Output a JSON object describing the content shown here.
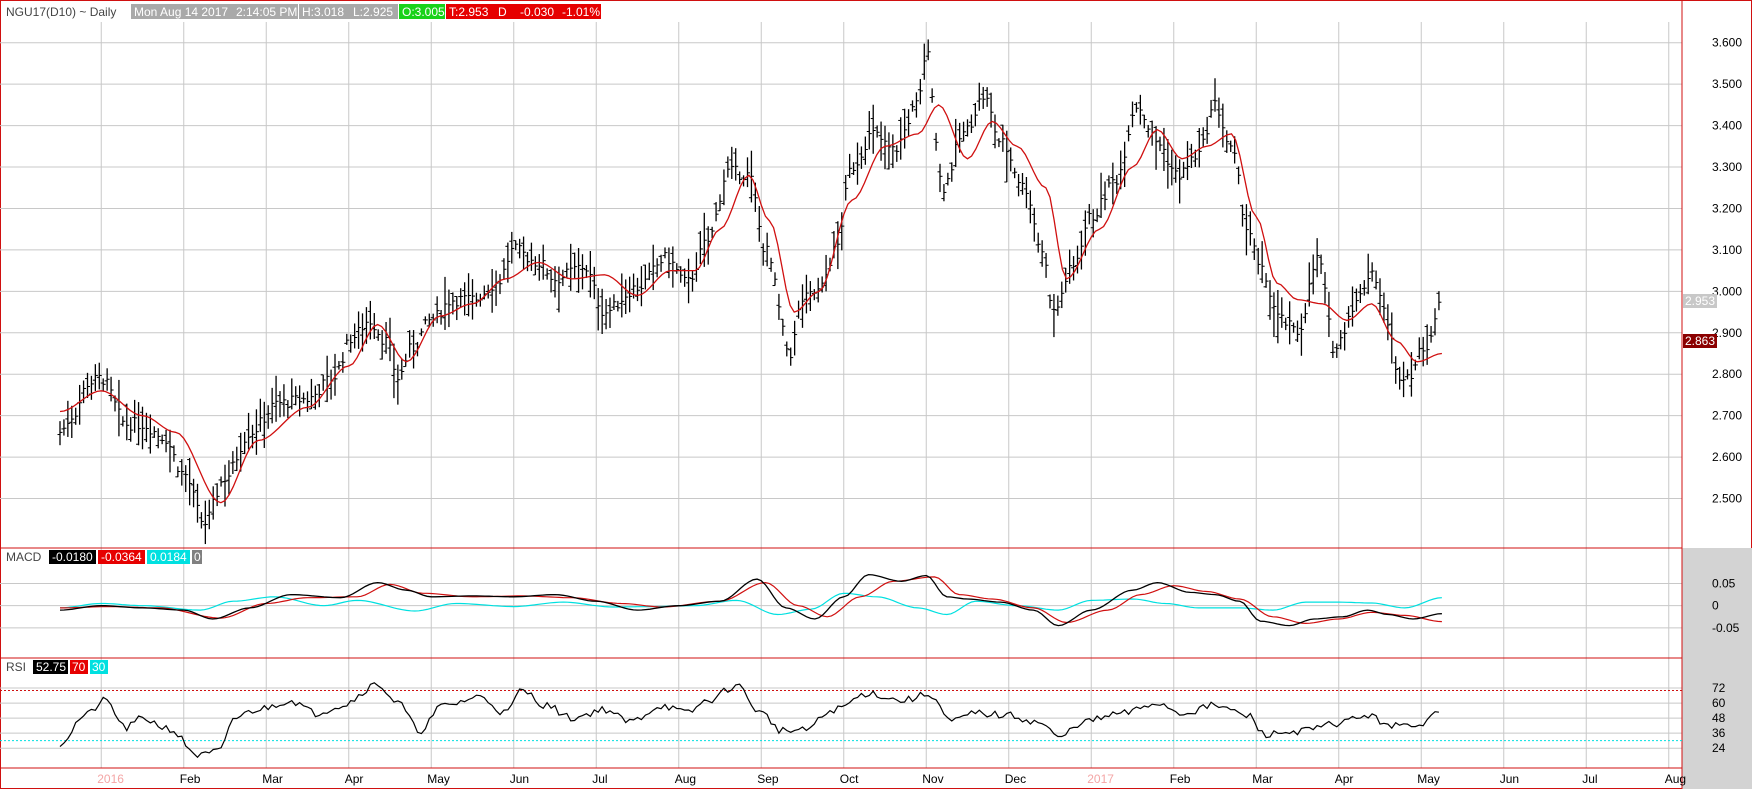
{
  "header": {
    "symbol": "NGU17(D10) ~ Daily",
    "date": "Mon Aug 14 2017",
    "time": "2:14:05 PM",
    "high": "H:3.018",
    "low": "L:2.925",
    "open": "O:3.005",
    "last": "T:2.953",
    "flag": "D",
    "change": "-0.030",
    "pct": "-1.01%"
  },
  "colors": {
    "price": "#000000",
    "ma": "#d01010",
    "macd_signal": "#d01010",
    "macd_hist": "#00e0e0",
    "rsi_level": "#00e0e0",
    "grid": "#c8c8c8",
    "frame": "#d01010",
    "axis_bg": "#d3d3d3"
  },
  "panels": {
    "macd": {
      "label": "MACD",
      "v1": "-0.0180",
      "v2": "-0.0364",
      "v3": "0.0184",
      "v4": "0"
    },
    "rsi": {
      "label": "RSI",
      "v1": "52.75",
      "v2": "70",
      "v3": "30"
    }
  },
  "chart_data": {
    "type": "line",
    "title": "NGU17(D10) ~ Daily",
    "x_months": [
      "2016",
      "Feb",
      "Mar",
      "Apr",
      "May",
      "Jun",
      "Jul",
      "Aug",
      "Sep",
      "Oct",
      "Nov",
      "Dec",
      "2017",
      "Feb",
      "Mar",
      "Apr",
      "May",
      "Jun",
      "Jul",
      "Aug"
    ],
    "price_axis": {
      "ticks": [
        "3.600",
        "3.500",
        "3.400",
        "3.300",
        "3.200",
        "3.100",
        "3.000",
        "2.900",
        "2.800",
        "2.700",
        "2.600",
        "2.500"
      ],
      "ylim": [
        2.4,
        3.65
      ]
    },
    "price_anchors": [
      {
        "month": 0.0,
        "value": 2.66
      },
      {
        "month": 0.15,
        "value": 2.7
      },
      {
        "month": 0.35,
        "value": 2.78
      },
      {
        "month": 0.5,
        "value": 2.79
      },
      {
        "month": 0.8,
        "value": 2.68
      },
      {
        "month": 1.0,
        "value": 2.68
      },
      {
        "month": 1.25,
        "value": 2.65
      },
      {
        "month": 1.5,
        "value": 2.56
      },
      {
        "month": 1.75,
        "value": 2.44
      },
      {
        "month": 2.0,
        "value": 2.55
      },
      {
        "month": 2.3,
        "value": 2.66
      },
      {
        "month": 2.65,
        "value": 2.73
      },
      {
        "month": 3.0,
        "value": 2.74
      },
      {
        "month": 3.3,
        "value": 2.79
      },
      {
        "month": 3.55,
        "value": 2.89
      },
      {
        "month": 3.75,
        "value": 2.93
      },
      {
        "month": 3.95,
        "value": 2.88
      },
      {
        "month": 4.1,
        "value": 2.79
      },
      {
        "month": 4.25,
        "value": 2.86
      },
      {
        "month": 4.5,
        "value": 2.93
      },
      {
        "month": 4.75,
        "value": 2.98
      },
      {
        "month": 5.0,
        "value": 2.98
      },
      {
        "month": 5.3,
        "value": 3.02
      },
      {
        "month": 5.5,
        "value": 3.1
      },
      {
        "month": 5.8,
        "value": 3.07
      },
      {
        "month": 6.0,
        "value": 3.03
      },
      {
        "month": 6.35,
        "value": 3.06
      },
      {
        "month": 6.6,
        "value": 2.95
      },
      {
        "month": 7.0,
        "value": 3.01
      },
      {
        "month": 7.35,
        "value": 3.08
      },
      {
        "month": 7.6,
        "value": 3.02
      },
      {
        "month": 7.85,
        "value": 3.12
      },
      {
        "month": 8.1,
        "value": 3.29
      },
      {
        "month": 8.35,
        "value": 3.28
      },
      {
        "month": 8.55,
        "value": 3.1
      },
      {
        "month": 8.85,
        "value": 2.85
      },
      {
        "month": 9.0,
        "value": 2.98
      },
      {
        "month": 9.2,
        "value": 3.0
      },
      {
        "month": 9.4,
        "value": 3.1
      },
      {
        "month": 9.6,
        "value": 3.3
      },
      {
        "month": 9.85,
        "value": 3.38
      },
      {
        "month": 10.1,
        "value": 3.34
      },
      {
        "month": 10.4,
        "value": 3.45
      },
      {
        "month": 10.5,
        "value": 3.58
      },
      {
        "month": 10.7,
        "value": 3.25
      },
      {
        "month": 10.95,
        "value": 3.38
      },
      {
        "month": 11.2,
        "value": 3.47
      },
      {
        "month": 11.4,
        "value": 3.36
      },
      {
        "month": 11.7,
        "value": 3.25
      },
      {
        "month": 11.9,
        "value": 3.1
      },
      {
        "month": 12.05,
        "value": 2.95
      },
      {
        "month": 12.25,
        "value": 3.05
      },
      {
        "month": 12.5,
        "value": 3.18
      },
      {
        "month": 12.8,
        "value": 3.27
      },
      {
        "month": 13.05,
        "value": 3.45
      },
      {
        "month": 13.3,
        "value": 3.36
      },
      {
        "month": 13.55,
        "value": 3.28
      },
      {
        "month": 13.8,
        "value": 3.33
      },
      {
        "month": 14.0,
        "value": 3.45
      },
      {
        "month": 14.2,
        "value": 3.34
      },
      {
        "month": 14.4,
        "value": 3.15
      },
      {
        "month": 14.55,
        "value": 3.05
      },
      {
        "month": 14.8,
        "value": 2.93
      },
      {
        "month": 15.0,
        "value": 2.9
      },
      {
        "month": 15.25,
        "value": 3.08
      },
      {
        "month": 15.45,
        "value": 2.86
      },
      {
        "month": 15.7,
        "value": 2.97
      },
      {
        "month": 15.9,
        "value": 3.05
      },
      {
        "month": 16.1,
        "value": 2.93
      },
      {
        "month": 16.2,
        "value": 2.8
      },
      {
        "month": 16.35,
        "value": 2.8
      },
      {
        "month": 16.55,
        "value": 2.87
      },
      {
        "month": 16.75,
        "value": 2.97
      }
    ],
    "ma_anchors": [
      {
        "month": 0.0,
        "value": 2.71
      },
      {
        "month": 0.5,
        "value": 2.76
      },
      {
        "month": 1.0,
        "value": 2.7
      },
      {
        "month": 1.4,
        "value": 2.66
      },
      {
        "month": 1.95,
        "value": 2.49
      },
      {
        "month": 2.4,
        "value": 2.64
      },
      {
        "month": 3.0,
        "value": 2.72
      },
      {
        "month": 3.5,
        "value": 2.82
      },
      {
        "month": 3.85,
        "value": 2.92
      },
      {
        "month": 4.2,
        "value": 2.83
      },
      {
        "month": 4.6,
        "value": 2.94
      },
      {
        "month": 5.0,
        "value": 2.97
      },
      {
        "month": 5.4,
        "value": 3.03
      },
      {
        "month": 5.8,
        "value": 3.07
      },
      {
        "month": 6.2,
        "value": 3.03
      },
      {
        "month": 6.6,
        "value": 3.04
      },
      {
        "month": 7.0,
        "value": 2.99
      },
      {
        "month": 7.4,
        "value": 3.05
      },
      {
        "month": 7.7,
        "value": 3.05
      },
      {
        "month": 8.0,
        "value": 3.15
      },
      {
        "month": 8.35,
        "value": 3.28
      },
      {
        "month": 8.6,
        "value": 3.17
      },
      {
        "month": 8.9,
        "value": 2.95
      },
      {
        "month": 9.2,
        "value": 3.0
      },
      {
        "month": 9.6,
        "value": 3.22
      },
      {
        "month": 10.0,
        "value": 3.35
      },
      {
        "month": 10.4,
        "value": 3.38
      },
      {
        "month": 10.65,
        "value": 3.45
      },
      {
        "month": 11.0,
        "value": 3.32
      },
      {
        "month": 11.3,
        "value": 3.41
      },
      {
        "month": 11.6,
        "value": 3.35
      },
      {
        "month": 11.95,
        "value": 3.25
      },
      {
        "month": 12.2,
        "value": 3.03
      },
      {
        "month": 12.6,
        "value": 3.15
      },
      {
        "month": 13.0,
        "value": 3.3
      },
      {
        "month": 13.3,
        "value": 3.39
      },
      {
        "month": 13.6,
        "value": 3.32
      },
      {
        "month": 13.9,
        "value": 3.35
      },
      {
        "month": 14.2,
        "value": 3.38
      },
      {
        "month": 14.5,
        "value": 3.18
      },
      {
        "month": 14.75,
        "value": 3.02
      },
      {
        "month": 15.0,
        "value": 2.98
      },
      {
        "month": 15.3,
        "value": 2.97
      },
      {
        "month": 15.6,
        "value": 2.93
      },
      {
        "month": 15.9,
        "value": 2.97
      },
      {
        "month": 16.2,
        "value": 2.88
      },
      {
        "month": 16.45,
        "value": 2.83
      },
      {
        "month": 16.75,
        "value": 2.85
      }
    ],
    "last_price": "2.953",
    "last_ma": "2.863",
    "macd_axis": {
      "ticks": [
        "0.05",
        "0",
        "-0.05"
      ],
      "ylim": [
        -0.1,
        0.085
      ]
    },
    "macd_anchors": [
      {
        "month": 0.0,
        "value": -0.01
      },
      {
        "month": 0.5,
        "value": 0.0
      },
      {
        "month": 1.0,
        "value": -0.005
      },
      {
        "month": 1.5,
        "value": -0.01
      },
      {
        "month": 1.85,
        "value": -0.03
      },
      {
        "month": 2.3,
        "value": -0.005
      },
      {
        "month": 2.8,
        "value": 0.025
      },
      {
        "month": 3.4,
        "value": 0.018
      },
      {
        "month": 3.85,
        "value": 0.052
      },
      {
        "month": 4.2,
        "value": 0.035
      },
      {
        "month": 4.5,
        "value": 0.02
      },
      {
        "month": 5.0,
        "value": 0.022
      },
      {
        "month": 5.5,
        "value": 0.02
      },
      {
        "month": 6.0,
        "value": 0.025
      },
      {
        "month": 6.5,
        "value": 0.01
      },
      {
        "month": 7.0,
        "value": -0.01
      },
      {
        "month": 7.5,
        "value": 0.0
      },
      {
        "month": 8.0,
        "value": 0.01
      },
      {
        "month": 8.45,
        "value": 0.06
      },
      {
        "month": 8.8,
        "value": -0.005
      },
      {
        "month": 9.15,
        "value": -0.03
      },
      {
        "month": 9.5,
        "value": 0.02
      },
      {
        "month": 9.8,
        "value": 0.07
      },
      {
        "month": 10.2,
        "value": 0.055
      },
      {
        "month": 10.5,
        "value": 0.068
      },
      {
        "month": 10.75,
        "value": 0.02
      },
      {
        "month": 11.0,
        "value": 0.015
      },
      {
        "month": 11.4,
        "value": 0.008
      },
      {
        "month": 11.8,
        "value": -0.01
      },
      {
        "month": 12.1,
        "value": -0.045
      },
      {
        "month": 12.5,
        "value": -0.01
      },
      {
        "month": 13.0,
        "value": 0.035
      },
      {
        "month": 13.3,
        "value": 0.052
      },
      {
        "month": 13.7,
        "value": 0.03
      },
      {
        "month": 14.0,
        "value": 0.025
      },
      {
        "month": 14.3,
        "value": 0.01
      },
      {
        "month": 14.55,
        "value": -0.035
      },
      {
        "month": 14.9,
        "value": -0.045
      },
      {
        "month": 15.2,
        "value": -0.03
      },
      {
        "month": 15.55,
        "value": -0.025
      },
      {
        "month": 15.85,
        "value": -0.01
      },
      {
        "month": 16.1,
        "value": -0.02
      },
      {
        "month": 16.4,
        "value": -0.03
      },
      {
        "month": 16.75,
        "value": -0.018
      }
    ],
    "signal_anchors": [
      {
        "month": 0.0,
        "value": -0.005
      },
      {
        "month": 0.6,
        "value": -0.002
      },
      {
        "month": 1.2,
        "value": -0.005
      },
      {
        "month": 1.95,
        "value": -0.028
      },
      {
        "month": 2.5,
        "value": 0.005
      },
      {
        "month": 3.0,
        "value": 0.018
      },
      {
        "month": 3.6,
        "value": 0.02
      },
      {
        "month": 4.0,
        "value": 0.048
      },
      {
        "month": 4.4,
        "value": 0.028
      },
      {
        "month": 5.0,
        "value": 0.02
      },
      {
        "month": 5.6,
        "value": 0.022
      },
      {
        "month": 6.2,
        "value": 0.018
      },
      {
        "month": 6.8,
        "value": 0.005
      },
      {
        "month": 7.3,
        "value": -0.003
      },
      {
        "month": 8.0,
        "value": 0.01
      },
      {
        "month": 8.55,
        "value": 0.052
      },
      {
        "month": 8.95,
        "value": 0.0
      },
      {
        "month": 9.3,
        "value": -0.025
      },
      {
        "month": 9.7,
        "value": 0.02
      },
      {
        "month": 10.1,
        "value": 0.055
      },
      {
        "month": 10.6,
        "value": 0.065
      },
      {
        "month": 10.9,
        "value": 0.025
      },
      {
        "month": 11.3,
        "value": 0.015
      },
      {
        "month": 11.8,
        "value": -0.005
      },
      {
        "month": 12.2,
        "value": -0.038
      },
      {
        "month": 12.7,
        "value": -0.01
      },
      {
        "month": 13.1,
        "value": 0.025
      },
      {
        "month": 13.5,
        "value": 0.045
      },
      {
        "month": 13.9,
        "value": 0.032
      },
      {
        "month": 14.3,
        "value": 0.015
      },
      {
        "month": 14.7,
        "value": -0.025
      },
      {
        "month": 15.1,
        "value": -0.04
      },
      {
        "month": 15.5,
        "value": -0.03
      },
      {
        "month": 15.9,
        "value": -0.015
      },
      {
        "month": 16.3,
        "value": -0.022
      },
      {
        "month": 16.75,
        "value": -0.036
      }
    ],
    "hist_anchors": [
      {
        "month": 0.0,
        "value": -0.005
      },
      {
        "month": 0.5,
        "value": 0.005
      },
      {
        "month": 1.0,
        "value": 0.0
      },
      {
        "month": 1.7,
        "value": -0.01
      },
      {
        "month": 2.1,
        "value": 0.01
      },
      {
        "month": 2.6,
        "value": 0.02
      },
      {
        "month": 3.2,
        "value": 0.0
      },
      {
        "month": 3.6,
        "value": 0.012
      },
      {
        "month": 4.3,
        "value": -0.012
      },
      {
        "month": 4.8,
        "value": 0.005
      },
      {
        "month": 5.5,
        "value": -0.002
      },
      {
        "month": 6.1,
        "value": 0.008
      },
      {
        "month": 6.7,
        "value": -0.003
      },
      {
        "month": 7.2,
        "value": -0.002
      },
      {
        "month": 7.7,
        "value": 0.0
      },
      {
        "month": 8.2,
        "value": 0.012
      },
      {
        "month": 8.7,
        "value": -0.02
      },
      {
        "month": 9.1,
        "value": -0.008
      },
      {
        "month": 9.5,
        "value": 0.028
      },
      {
        "month": 9.9,
        "value": 0.02
      },
      {
        "month": 10.4,
        "value": -0.005
      },
      {
        "month": 10.75,
        "value": -0.02
      },
      {
        "month": 11.1,
        "value": 0.01
      },
      {
        "month": 11.6,
        "value": 0.0
      },
      {
        "month": 12.1,
        "value": -0.01
      },
      {
        "month": 12.5,
        "value": 0.012
      },
      {
        "month": 13.0,
        "value": 0.015
      },
      {
        "month": 13.4,
        "value": 0.005
      },
      {
        "month": 13.8,
        "value": -0.005
      },
      {
        "month": 14.3,
        "value": -0.005
      },
      {
        "month": 14.7,
        "value": -0.01
      },
      {
        "month": 15.1,
        "value": 0.008
      },
      {
        "month": 15.5,
        "value": 0.008
      },
      {
        "month": 15.9,
        "value": 0.006
      },
      {
        "month": 16.3,
        "value": -0.005
      },
      {
        "month": 16.75,
        "value": 0.018
      }
    ],
    "rsi_axis": {
      "ticks": [
        "72",
        "60",
        "48",
        "36",
        "24"
      ],
      "ylim": [
        13,
        80
      ],
      "overbought": 70,
      "oversold": 30
    },
    "rsi_anchors": [
      {
        "month": 0.0,
        "value": 28
      },
      {
        "month": 0.3,
        "value": 50
      },
      {
        "month": 0.55,
        "value": 62
      },
      {
        "month": 0.8,
        "value": 40
      },
      {
        "month": 1.0,
        "value": 48
      },
      {
        "month": 1.3,
        "value": 40
      },
      {
        "month": 1.7,
        "value": 18
      },
      {
        "month": 1.95,
        "value": 22
      },
      {
        "month": 2.1,
        "value": 48
      },
      {
        "month": 2.4,
        "value": 55
      },
      {
        "month": 2.8,
        "value": 62
      },
      {
        "month": 3.1,
        "value": 52
      },
      {
        "month": 3.4,
        "value": 58
      },
      {
        "month": 3.85,
        "value": 75
      },
      {
        "month": 4.1,
        "value": 60
      },
      {
        "month": 4.35,
        "value": 38
      },
      {
        "month": 4.65,
        "value": 58
      },
      {
        "month": 5.1,
        "value": 65
      },
      {
        "month": 5.4,
        "value": 52
      },
      {
        "month": 5.6,
        "value": 70
      },
      {
        "month": 5.9,
        "value": 58
      },
      {
        "month": 6.2,
        "value": 48
      },
      {
        "month": 6.6,
        "value": 55
      },
      {
        "month": 6.9,
        "value": 45
      },
      {
        "month": 7.3,
        "value": 58
      },
      {
        "month": 7.6,
        "value": 52
      },
      {
        "month": 7.85,
        "value": 62
      },
      {
        "month": 8.2,
        "value": 74
      },
      {
        "month": 8.5,
        "value": 52
      },
      {
        "month": 8.75,
        "value": 38
      },
      {
        "month": 9.0,
        "value": 38
      },
      {
        "month": 9.4,
        "value": 55
      },
      {
        "month": 9.8,
        "value": 68
      },
      {
        "month": 10.2,
        "value": 62
      },
      {
        "month": 10.55,
        "value": 67
      },
      {
        "month": 10.8,
        "value": 45
      },
      {
        "month": 11.1,
        "value": 52
      },
      {
        "month": 11.5,
        "value": 50
      },
      {
        "month": 11.9,
        "value": 44
      },
      {
        "month": 12.1,
        "value": 32
      },
      {
        "month": 12.4,
        "value": 45
      },
      {
        "month": 12.9,
        "value": 52
      },
      {
        "month": 13.3,
        "value": 60
      },
      {
        "month": 13.6,
        "value": 52
      },
      {
        "month": 14.0,
        "value": 58
      },
      {
        "month": 14.4,
        "value": 50
      },
      {
        "month": 14.6,
        "value": 35
      },
      {
        "month": 15.1,
        "value": 38
      },
      {
        "month": 15.5,
        "value": 44
      },
      {
        "month": 15.8,
        "value": 50
      },
      {
        "month": 16.2,
        "value": 42
      },
      {
        "month": 16.45,
        "value": 40
      },
      {
        "month": 16.65,
        "value": 54
      },
      {
        "month": 16.75,
        "value": 53
      }
    ]
  }
}
